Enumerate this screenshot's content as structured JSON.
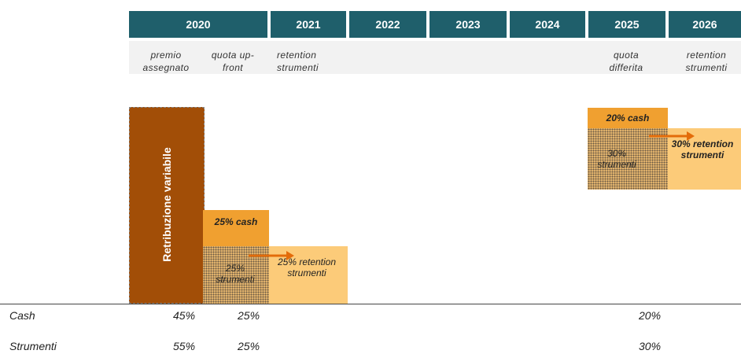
{
  "years": [
    "2020",
    "2021",
    "2022",
    "2023",
    "2024",
    "2025",
    "2026"
  ],
  "sub_labels": {
    "premio": "premio assegnato",
    "upfront": "quota up-front",
    "retention_2021": "retention strumenti",
    "differita": "quota differita",
    "retention_2026": "retention strumenti"
  },
  "bars": {
    "variabile": "Retribuzione variabile",
    "cash_2020": "25% cash",
    "strumenti_2020": "25% strumenti",
    "retention_2021": "25% retention strumenti",
    "cash_2025": "20% cash",
    "strumenti_2025": "30% strumenti",
    "retention_2026": "30% retention strumenti"
  },
  "table": {
    "rows": [
      {
        "label": "Cash",
        "v1": "45%",
        "v2": "25%",
        "v3": "20%"
      },
      {
        "label": "Strumenti",
        "v1": "55%",
        "v2": "25%",
        "v3": "30%"
      }
    ]
  },
  "colors": {
    "header": "#1f5f6b",
    "brown": "#a24e07",
    "orange": "#f0a030",
    "light_orange": "#fccb79",
    "arrow": "#e36c0a"
  }
}
